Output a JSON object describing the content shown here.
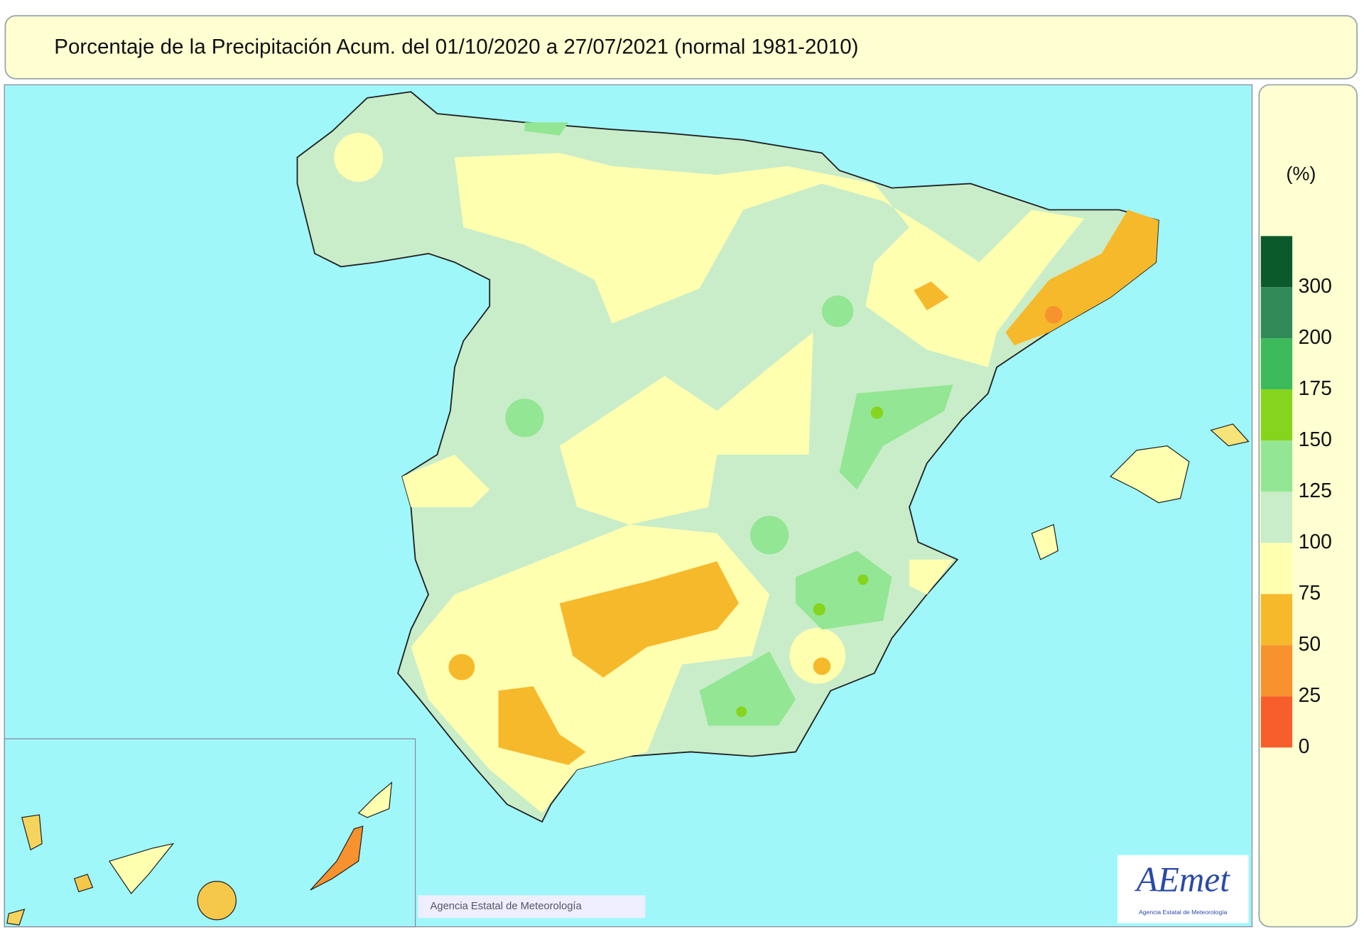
{
  "title": "Porcentaje de la Precipitación Acum. del 01/10/2020 a  27/07/2021  (normal 1981-2010)",
  "legend": {
    "unit": "(%)",
    "ticks": [
      300,
      200,
      175,
      150,
      125,
      100,
      75,
      50,
      25,
      0
    ],
    "colors": [
      "#0b5a2c",
      "#2f8a58",
      "#3cba5c",
      "#86d41e",
      "#93e693",
      "#c9edc9",
      "#ffffb0",
      "#f6b92b",
      "#f7922f",
      "#f85d2c"
    ]
  },
  "credit": "Agencia Estatal de Meteorología",
  "logo": {
    "name": "AEmet",
    "subtitle": "Agencia Estatal de Meteorología"
  }
}
